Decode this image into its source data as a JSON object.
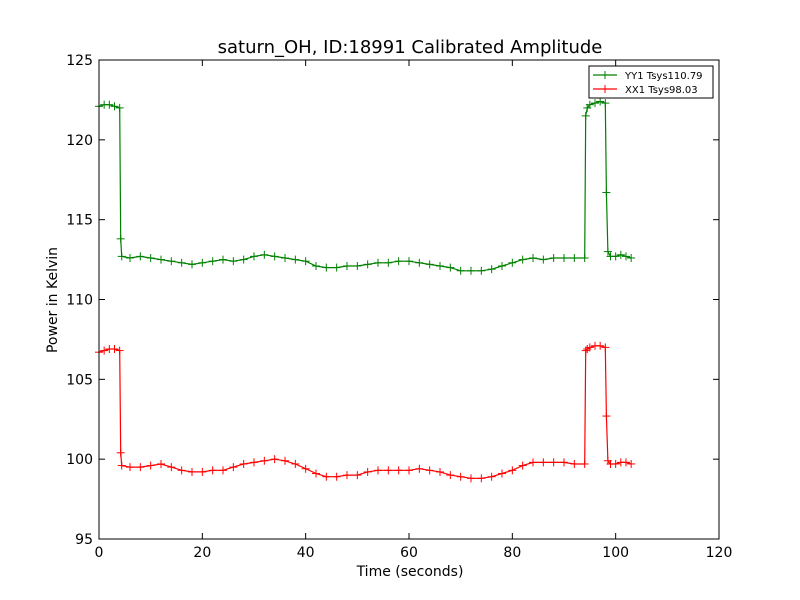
{
  "chart_data": {
    "type": "line",
    "title": "saturn_OH, ID:18991 Calibrated Amplitude",
    "xlabel": "Time (seconds)",
    "ylabel": "Power in Kelvin",
    "xlim": [
      0,
      120
    ],
    "ylim": [
      95,
      125
    ],
    "xticks": [
      0,
      20,
      40,
      60,
      80,
      100,
      120
    ],
    "yticks": [
      95,
      100,
      105,
      110,
      115,
      120,
      125
    ],
    "grid": false,
    "legend_position": "top-right",
    "series": [
      {
        "name": "YY1 Tsys110.79",
        "color": "#008000",
        "marker": "plus",
        "x": [
          0,
          1,
          2,
          3,
          4,
          4.2,
          4.4,
          6,
          8,
          10,
          12,
          14,
          16,
          18,
          20,
          22,
          24,
          26,
          28,
          30,
          32,
          34,
          36,
          38,
          40,
          42,
          44,
          46,
          48,
          50,
          52,
          54,
          56,
          58,
          60,
          62,
          64,
          66,
          68,
          70,
          72,
          74,
          76,
          78,
          80,
          82,
          84,
          86,
          88,
          90,
          92,
          94,
          94.2,
          94.5,
          95,
          96,
          97,
          98,
          98.2,
          98.5,
          99,
          100,
          101,
          102,
          103
        ],
        "y": [
          122.1,
          122.2,
          122.2,
          122.1,
          122.0,
          113.8,
          112.7,
          112.6,
          112.7,
          112.6,
          112.5,
          112.4,
          112.3,
          112.2,
          112.3,
          112.4,
          112.5,
          112.4,
          112.5,
          112.7,
          112.8,
          112.7,
          112.6,
          112.5,
          112.4,
          112.1,
          112.0,
          112.0,
          112.1,
          112.1,
          112.2,
          112.3,
          112.3,
          112.4,
          112.4,
          112.3,
          112.2,
          112.1,
          112.0,
          111.8,
          111.8,
          111.8,
          111.9,
          112.1,
          112.3,
          112.5,
          112.6,
          112.5,
          112.6,
          112.6,
          112.6,
          112.6,
          121.5,
          122.0,
          122.2,
          122.3,
          122.4,
          122.3,
          116.7,
          113.0,
          112.7,
          112.7,
          112.8,
          112.7,
          112.6
        ]
      },
      {
        "name": "XX1 Tsys98.03",
        "color": "#ff0000",
        "marker": "plus",
        "x": [
          0,
          1,
          2,
          3,
          4,
          4.2,
          4.4,
          6,
          8,
          10,
          12,
          14,
          16,
          18,
          20,
          22,
          24,
          26,
          28,
          30,
          32,
          34,
          36,
          38,
          40,
          42,
          44,
          46,
          48,
          50,
          52,
          54,
          56,
          58,
          60,
          62,
          64,
          66,
          68,
          70,
          72,
          74,
          76,
          78,
          80,
          82,
          84,
          86,
          88,
          90,
          92,
          94,
          94.2,
          94.5,
          95,
          96,
          97,
          98,
          98.2,
          98.5,
          99,
          100,
          101,
          102,
          103
        ],
        "y": [
          106.7,
          106.8,
          106.9,
          106.9,
          106.8,
          100.4,
          99.6,
          99.5,
          99.5,
          99.6,
          99.7,
          99.5,
          99.3,
          99.2,
          99.2,
          99.3,
          99.3,
          99.5,
          99.7,
          99.8,
          99.9,
          100.0,
          99.9,
          99.7,
          99.4,
          99.1,
          98.9,
          98.9,
          99.0,
          99.0,
          99.2,
          99.3,
          99.3,
          99.3,
          99.3,
          99.4,
          99.3,
          99.2,
          99.0,
          98.9,
          98.8,
          98.8,
          98.9,
          99.1,
          99.3,
          99.6,
          99.8,
          99.8,
          99.8,
          99.8,
          99.7,
          99.7,
          106.8,
          106.9,
          107.0,
          107.1,
          107.1,
          107.0,
          102.7,
          99.9,
          99.7,
          99.7,
          99.8,
          99.8,
          99.7
        ]
      }
    ]
  }
}
